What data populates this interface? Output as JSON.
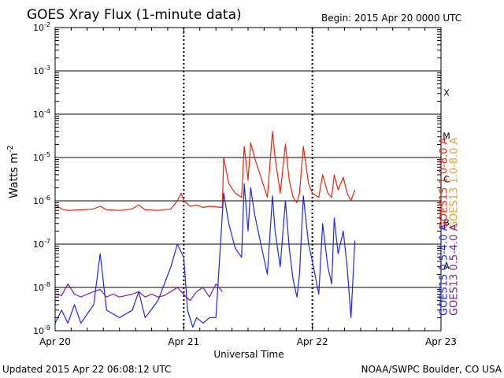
{
  "chart_data": {
    "type": "line",
    "title": "GOES Xray Flux (1-minute data)",
    "begin_label": "Begin:  2015 Apr 20 0000 UTC",
    "xlabel": "Universal Time",
    "ylabel_main": "Watts m",
    "ylabel_sup": "-2",
    "footer_left": "Updated 2015 Apr 22 06:08:12 UTC",
    "footer_right": "NOAA/SWPC Boulder, CO USA",
    "y_scale": "log",
    "ylim": [
      1e-09,
      0.01
    ],
    "y_ticks": [
      {
        "exp": "-9",
        "value": 1e-09
      },
      {
        "exp": "-8",
        "value": 1e-08
      },
      {
        "exp": "-7",
        "value": 1e-07
      },
      {
        "exp": "-6",
        "value": 1e-06
      },
      {
        "exp": "-5",
        "value": 1e-05
      },
      {
        "exp": "-4",
        "value": 0.0001
      },
      {
        "exp": "-3",
        "value": 0.001
      },
      {
        "exp": "-2",
        "value": 0.01
      }
    ],
    "x_unit": "days since 2015 Apr 20 0000 UTC",
    "xlim": [
      0,
      3
    ],
    "x_ticks": [
      {
        "label": "Apr 20",
        "value": 0
      },
      {
        "label": "Apr 21",
        "value": 1
      },
      {
        "label": "Apr 22",
        "value": 2
      },
      {
        "label": "Apr 23",
        "value": 3
      }
    ],
    "flare_classes": [
      {
        "label": "A",
        "value": 1e-08
      },
      {
        "label": "B",
        "value": 1e-07
      },
      {
        "label": "C",
        "value": 1e-06
      },
      {
        "label": "M",
        "value": 1e-05
      },
      {
        "label": "X",
        "value": 0.0001
      }
    ],
    "series": [
      {
        "name": "GOES15 1.0-8.0 A",
        "color": "#e8250c",
        "label_x_value": 3.02,
        "points": [
          [
            0,
            8e-07
          ],
          [
            0.05,
            6.5e-07
          ],
          [
            0.1,
            6e-07
          ],
          [
            0.2,
            6.2e-07
          ],
          [
            0.3,
            6.5e-07
          ],
          [
            0.35,
            7.5e-07
          ],
          [
            0.4,
            6.2e-07
          ],
          [
            0.5,
            6e-07
          ],
          [
            0.6,
            6.5e-07
          ],
          [
            0.65,
            8e-07
          ],
          [
            0.7,
            6.2e-07
          ],
          [
            0.8,
            6e-07
          ],
          [
            0.9,
            6.5e-07
          ],
          [
            0.95,
            1e-06
          ],
          [
            0.98,
            1.5e-06
          ],
          [
            1.0,
            1e-06
          ],
          [
            1.05,
            7.5e-07
          ],
          [
            1.1,
            8e-07
          ],
          [
            1.15,
            7e-07
          ],
          [
            1.2,
            7.5e-07
          ],
          [
            1.3,
            7e-07
          ],
          [
            1.31,
            1e-05
          ],
          [
            1.35,
            2.5e-06
          ],
          [
            1.4,
            1.5e-06
          ],
          [
            1.45,
            1.2e-06
          ],
          [
            1.47,
            1.8e-05
          ],
          [
            1.5,
            3e-06
          ],
          [
            1.52,
            2.2e-05
          ],
          [
            1.55,
            1e-05
          ],
          [
            1.6,
            3.5e-06
          ],
          [
            1.65,
            1.2e-06
          ],
          [
            1.69,
            4e-05
          ],
          [
            1.71,
            1e-05
          ],
          [
            1.75,
            1.5e-06
          ],
          [
            1.79,
            2e-05
          ],
          [
            1.82,
            3e-06
          ],
          [
            1.85,
            1.2e-06
          ],
          [
            1.88,
            9e-07
          ],
          [
            1.9,
            1.5e-06
          ],
          [
            1.93,
            1.8e-05
          ],
          [
            1.97,
            2.5e-06
          ],
          [
            2.0,
            1.5e-06
          ],
          [
            2.05,
            1.2e-06
          ],
          [
            2.08,
            4e-06
          ],
          [
            2.12,
            1.5e-06
          ],
          [
            2.15,
            1.2e-06
          ],
          [
            2.17,
            4e-06
          ],
          [
            2.2,
            1.8e-06
          ],
          [
            2.24,
            3.5e-06
          ],
          [
            2.27,
            1.5e-06
          ],
          [
            2.3,
            1e-06
          ],
          [
            2.33,
            1.8e-06
          ]
        ]
      },
      {
        "name": "GOES13 1.0-8.0 A",
        "color": "#f0a018",
        "label_x_value": 3.1,
        "points": []
      },
      {
        "name": "GOES15 0.5-4.0 A",
        "color": "#1f28e8",
        "label_x_value": 3.02,
        "points": [
          [
            0,
            1.5e-09
          ],
          [
            0.05,
            3e-09
          ],
          [
            0.1,
            1.5e-09
          ],
          [
            0.15,
            4e-09
          ],
          [
            0.2,
            1.5e-09
          ],
          [
            0.3,
            4e-09
          ],
          [
            0.35,
            6e-08
          ],
          [
            0.4,
            3e-09
          ],
          [
            0.5,
            2e-09
          ],
          [
            0.6,
            3e-09
          ],
          [
            0.65,
            8e-09
          ],
          [
            0.7,
            2e-09
          ],
          [
            0.8,
            5e-09
          ],
          [
            0.9,
            3e-08
          ],
          [
            0.95,
            1e-07
          ],
          [
            1.0,
            5e-08
          ],
          [
            1.03,
            3e-09
          ],
          [
            1.07,
            1.2e-09
          ],
          [
            1.1,
            2e-09
          ],
          [
            1.15,
            1.5e-09
          ],
          [
            1.2,
            2e-09
          ],
          [
            1.25,
            2e-09
          ],
          [
            1.31,
            1.5e-06
          ],
          [
            1.35,
            3e-07
          ],
          [
            1.4,
            8e-08
          ],
          [
            1.45,
            5e-08
          ],
          [
            1.47,
            2.5e-06
          ],
          [
            1.5,
            2e-07
          ],
          [
            1.52,
            2e-06
          ],
          [
            1.55,
            5e-07
          ],
          [
            1.6,
            1e-07
          ],
          [
            1.65,
            2e-08
          ],
          [
            1.69,
            1.3e-06
          ],
          [
            1.71,
            2e-07
          ],
          [
            1.75,
            3e-08
          ],
          [
            1.79,
            1e-06
          ],
          [
            1.82,
            8e-08
          ],
          [
            1.85,
            1.5e-08
          ],
          [
            1.88,
            6e-09
          ],
          [
            1.9,
            2e-08
          ],
          [
            1.93,
            1.3e-06
          ],
          [
            1.97,
            1e-07
          ],
          [
            2.0,
            4e-08
          ],
          [
            2.05,
            7e-09
          ],
          [
            2.08,
            3e-07
          ],
          [
            2.12,
            3e-08
          ],
          [
            2.15,
            1.2e-08
          ],
          [
            2.17,
            4e-07
          ],
          [
            2.2,
            6e-08
          ],
          [
            2.24,
            2e-07
          ],
          [
            2.27,
            3e-08
          ],
          [
            2.3,
            2e-09
          ],
          [
            2.33,
            1.2e-07
          ]
        ]
      },
      {
        "name": "GOES13 0.5-4.0 A",
        "color": "#7a1aa8",
        "label_x_value": 3.1,
        "points": [
          [
            0,
            7e-09
          ],
          [
            0.05,
            6.5e-09
          ],
          [
            0.1,
            1.2e-08
          ],
          [
            0.15,
            7e-09
          ],
          [
            0.2,
            6e-09
          ],
          [
            0.25,
            7e-09
          ],
          [
            0.3,
            8e-09
          ],
          [
            0.35,
            9e-09
          ],
          [
            0.4,
            6e-09
          ],
          [
            0.45,
            7e-09
          ],
          [
            0.5,
            6e-09
          ],
          [
            0.55,
            6.5e-09
          ],
          [
            0.6,
            7e-09
          ],
          [
            0.65,
            8e-09
          ],
          [
            0.7,
            6e-09
          ],
          [
            0.75,
            7e-09
          ],
          [
            0.8,
            6e-09
          ],
          [
            0.85,
            6.5e-09
          ],
          [
            0.9,
            8e-09
          ],
          [
            0.95,
            1e-08
          ],
          [
            0.98,
            8e-09
          ],
          [
            1.02,
            6e-09
          ],
          [
            1.05,
            5e-09
          ],
          [
            1.1,
            8e-09
          ],
          [
            1.15,
            1e-08
          ],
          [
            1.2,
            6e-09
          ],
          [
            1.25,
            1.2e-08
          ],
          [
            1.3,
            8e-09
          ]
        ]
      }
    ]
  }
}
